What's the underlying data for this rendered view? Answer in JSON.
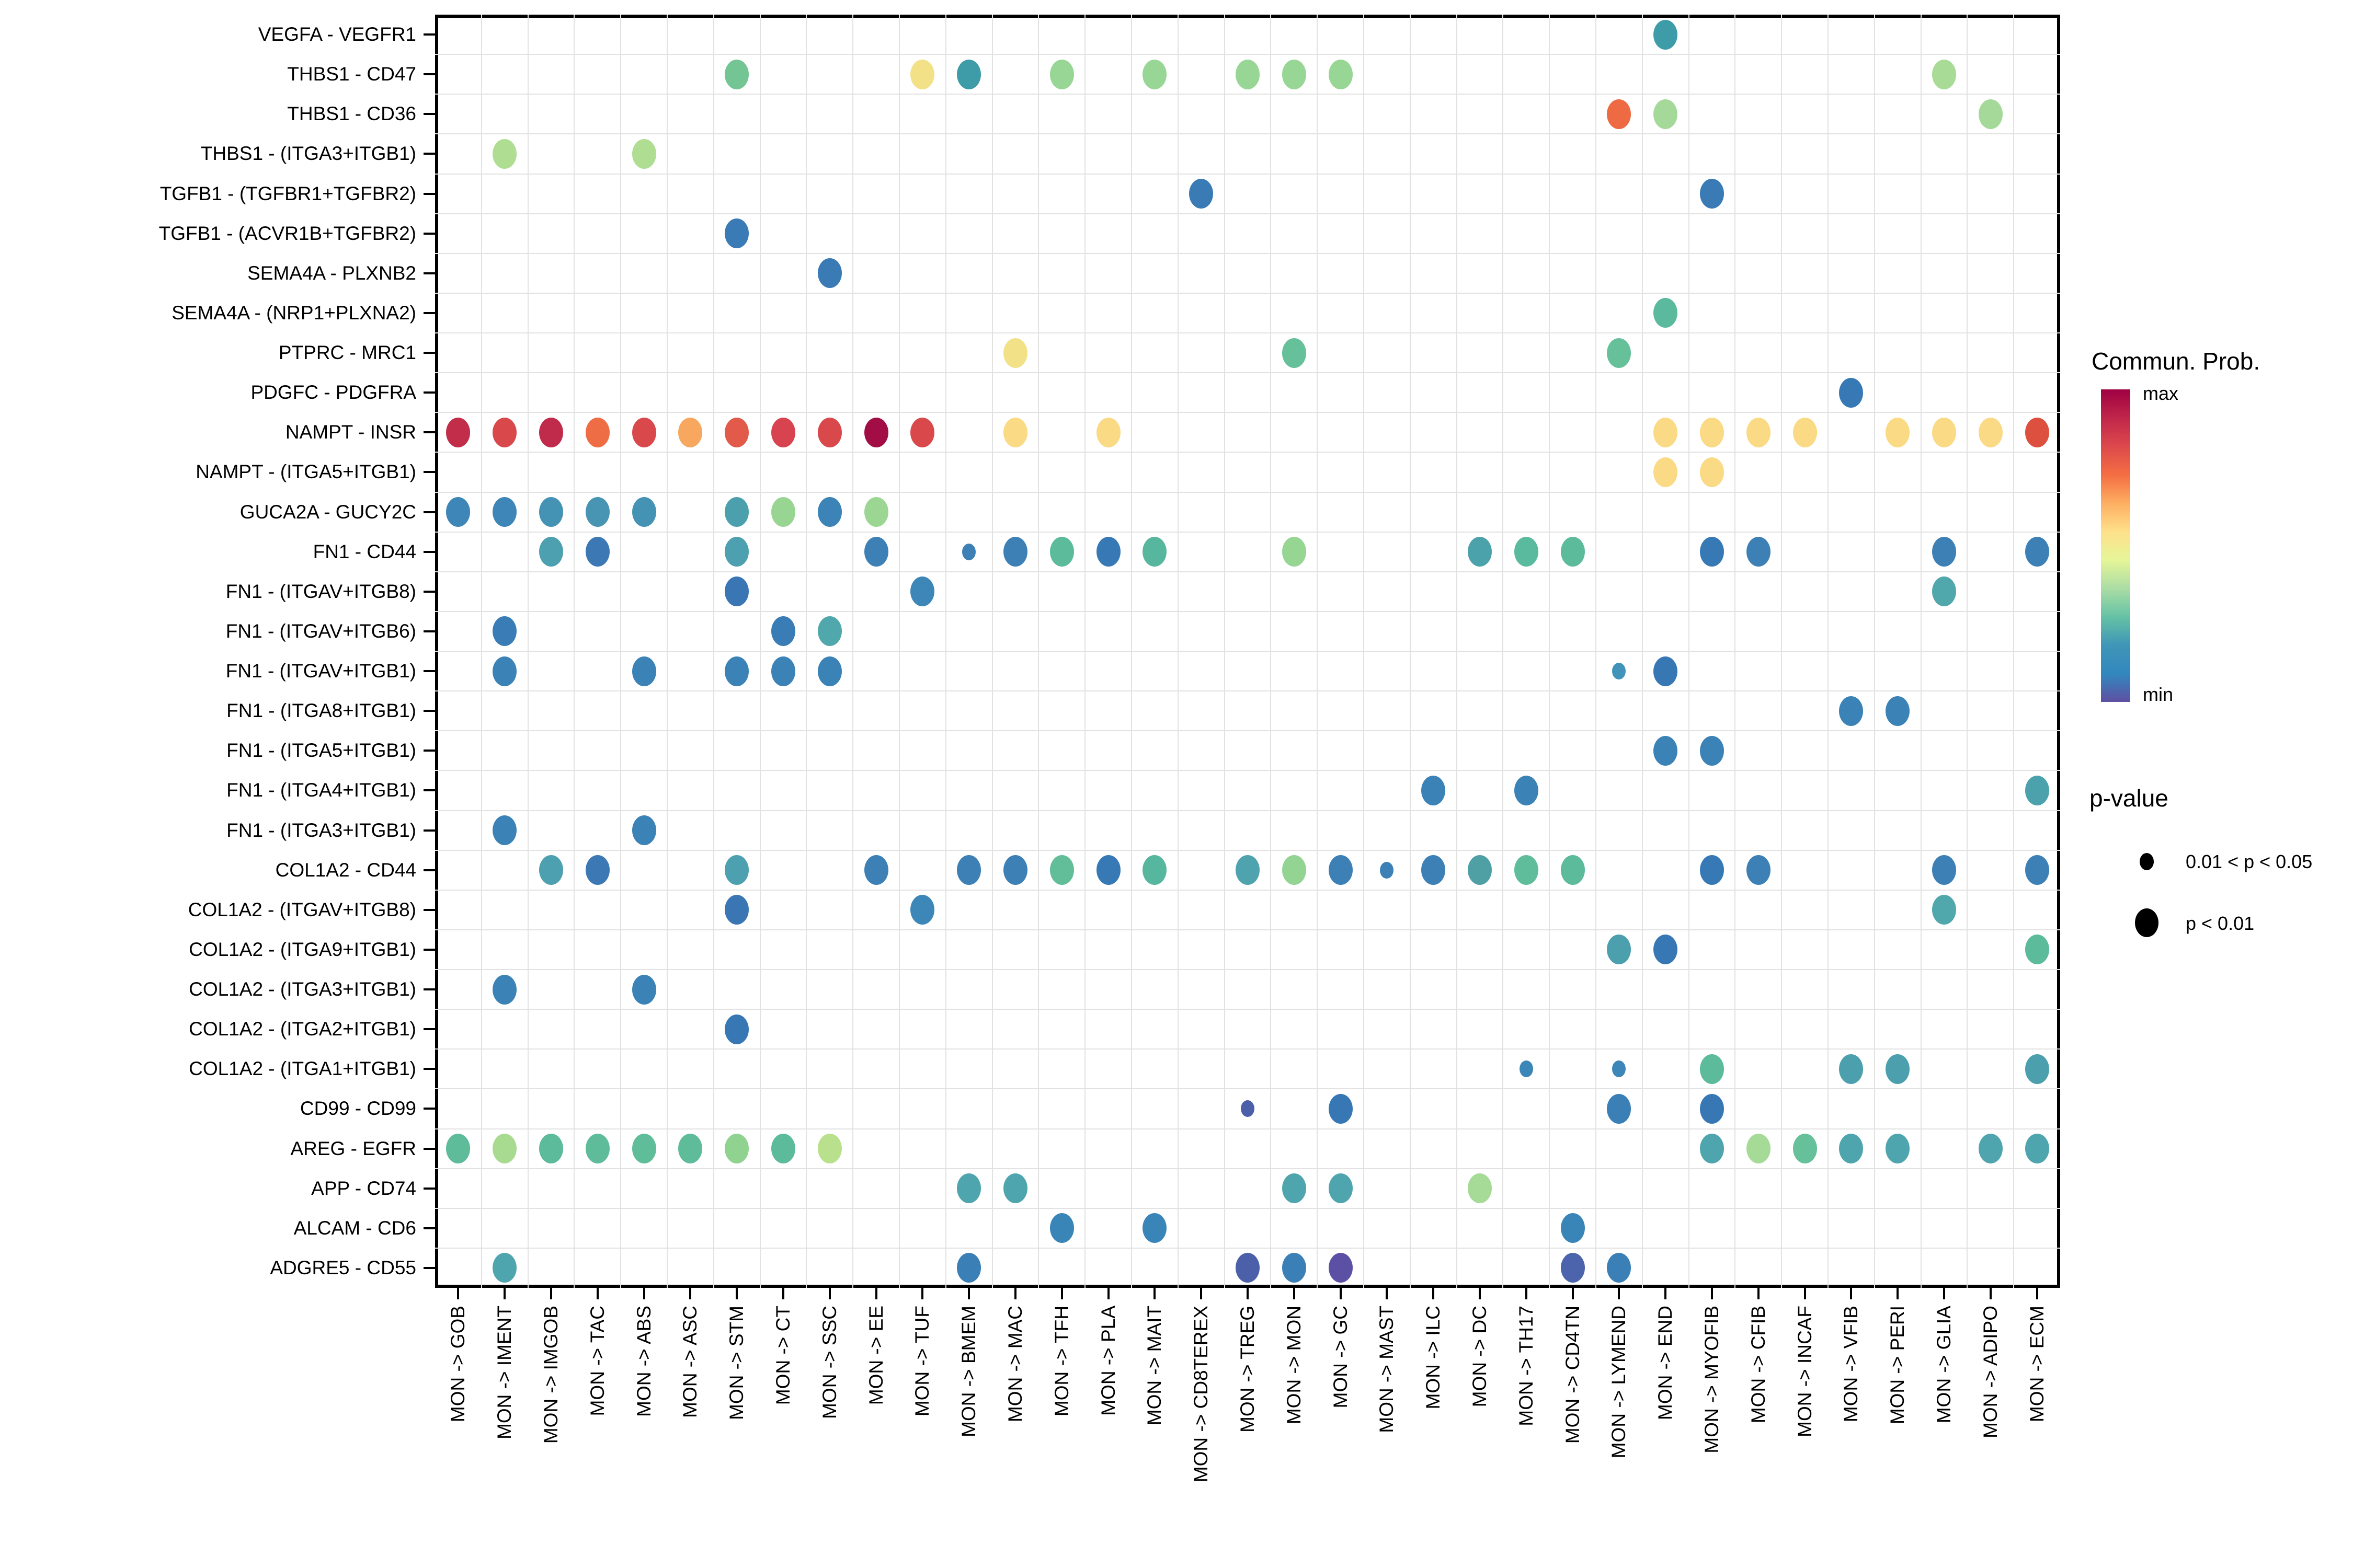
{
  "chart_data": {
    "type": "scatter",
    "subtype": "bubble-matrix-cellchat",
    "title": "",
    "xlabel": "",
    "ylabel": "",
    "grid": true,
    "x_categories": [
      "MON -> GOB",
      "MON -> IMENT",
      "MON -> IMGOB",
      "MON -> TAC",
      "MON -> ABS",
      "MON -> ASC",
      "MON -> STM",
      "MON -> CT",
      "MON -> SSC",
      "MON -> EE",
      "MON -> TUF",
      "MON -> BMEM",
      "MON -> MAC",
      "MON -> TFH",
      "MON -> PLA",
      "MON -> MAIT",
      "MON -> CD8TEREX",
      "MON -> TREG",
      "MON -> MON",
      "MON -> GC",
      "MON -> MAST",
      "MON -> ILC",
      "MON -> DC",
      "MON -> TH17",
      "MON -> CD4TN",
      "MON -> LYMEND",
      "MON -> END",
      "MON -> MYOFIB",
      "MON -> CFIB",
      "MON -> INCAF",
      "MON -> VFIB",
      "MON -> PERI",
      "MON -> GLIA",
      "MON -> ADIPO",
      "MON -> ECM"
    ],
    "y_categories": [
      "VEGFA - VEGFR1",
      "THBS1 - CD47",
      "THBS1 - CD36",
      "THBS1 - (ITGA3+ITGB1)",
      "TGFB1 - (TGFBR1+TGFBR2)",
      "TGFB1 - (ACVR1B+TGFBR2)",
      "SEMA4A - PLXNB2",
      "SEMA4A - (NRP1+PLXNA2)",
      "PTPRC - MRC1",
      "PDGFC - PDGFRA",
      "NAMPT - INSR",
      "NAMPT - (ITGA5+ITGB1)",
      "GUCA2A - GUCY2C",
      "FN1 - CD44",
      "FN1 - (ITGAV+ITGB8)",
      "FN1 - (ITGAV+ITGB6)",
      "FN1 - (ITGAV+ITGB1)",
      "FN1 - (ITGA8+ITGB1)",
      "FN1 - (ITGA5+ITGB1)",
      "FN1 - (ITGA4+ITGB1)",
      "FN1 - (ITGA3+ITGB1)",
      "COL1A2 - CD44",
      "COL1A2 - (ITGAV+ITGB8)",
      "COL1A2 - (ITGA9+ITGB1)",
      "COL1A2 - (ITGA3+ITGB1)",
      "COL1A2 - (ITGA2+ITGB1)",
      "COL1A2 - (ITGA1+ITGB1)",
      "CD99 - CD99",
      "AREG - EGFR",
      "APP - CD74",
      "ALCAM - CD6",
      "ADGRE5 - CD55"
    ],
    "legend": {
      "color_title": "Commun. Prob.",
      "color_max_label": "max",
      "color_min_label": "min",
      "gradient_top_to_bottom": [
        "#9E0142",
        "#C0264A",
        "#DC494C",
        "#F46D43",
        "#FDAE61",
        "#FEE08B",
        "#E6F598",
        "#ABDDA4",
        "#66C2A5",
        "#3F96B7",
        "#3288BD",
        "#5E4FA2"
      ],
      "size_title": "p-value",
      "size_items": [
        {
          "label": "0.01 < p < 0.05",
          "size": "small"
        },
        {
          "label": "p < 0.01",
          "size": "large"
        }
      ]
    },
    "points": [
      {
        "r": 0,
        "c": 26,
        "color": "#3D9CA8",
        "s": "L"
      },
      {
        "r": 1,
        "c": 6,
        "color": "#74C594",
        "s": "L"
      },
      {
        "r": 1,
        "c": 10,
        "color": "#F2E187",
        "s": "L"
      },
      {
        "r": 1,
        "c": 11,
        "color": "#3D9CA8",
        "s": "L"
      },
      {
        "r": 1,
        "c": 13,
        "color": "#97D694",
        "s": "L"
      },
      {
        "r": 1,
        "c": 15,
        "color": "#97D694",
        "s": "L"
      },
      {
        "r": 1,
        "c": 17,
        "color": "#97D694",
        "s": "L"
      },
      {
        "r": 1,
        "c": 18,
        "color": "#97D694",
        "s": "L"
      },
      {
        "r": 1,
        "c": 19,
        "color": "#97D694",
        "s": "L"
      },
      {
        "r": 1,
        "c": 32,
        "color": "#A8DB96",
        "s": "L"
      },
      {
        "r": 2,
        "c": 25,
        "color": "#ED6A42",
        "s": "L"
      },
      {
        "r": 2,
        "c": 26,
        "color": "#A5D99A",
        "s": "L"
      },
      {
        "r": 2,
        "c": 33,
        "color": "#A5D99A",
        "s": "L"
      },
      {
        "r": 3,
        "c": 1,
        "color": "#AFDD92",
        "s": "L"
      },
      {
        "r": 3,
        "c": 4,
        "color": "#AFDD92",
        "s": "L"
      },
      {
        "r": 4,
        "c": 16,
        "color": "#3A7AB5",
        "s": "L"
      },
      {
        "r": 4,
        "c": 27,
        "color": "#3A7AB5",
        "s": "L"
      },
      {
        "r": 5,
        "c": 6,
        "color": "#3A7AB5",
        "s": "L"
      },
      {
        "r": 6,
        "c": 8,
        "color": "#3A7AB5",
        "s": "L"
      },
      {
        "r": 7,
        "c": 26,
        "color": "#5BBA9D",
        "s": "L"
      },
      {
        "r": 8,
        "c": 12,
        "color": "#F2E187",
        "s": "L"
      },
      {
        "r": 8,
        "c": 18,
        "color": "#66C09A",
        "s": "L"
      },
      {
        "r": 8,
        "c": 25,
        "color": "#66C09A",
        "s": "L"
      },
      {
        "r": 9,
        "c": 30,
        "color": "#3779B5",
        "s": "L"
      },
      {
        "r": 10,
        "c": 0,
        "color": "#C22E49",
        "s": "L"
      },
      {
        "r": 10,
        "c": 1,
        "color": "#D9494B",
        "s": "L"
      },
      {
        "r": 10,
        "c": 2,
        "color": "#C02A4B",
        "s": "L"
      },
      {
        "r": 10,
        "c": 3,
        "color": "#EE6D45",
        "s": "L"
      },
      {
        "r": 10,
        "c": 4,
        "color": "#D9494B",
        "s": "L"
      },
      {
        "r": 10,
        "c": 5,
        "color": "#F7A85E",
        "s": "L"
      },
      {
        "r": 10,
        "c": 6,
        "color": "#E25A4A",
        "s": "L"
      },
      {
        "r": 10,
        "c": 7,
        "color": "#D7434E",
        "s": "L"
      },
      {
        "r": 10,
        "c": 8,
        "color": "#D9494B",
        "s": "L"
      },
      {
        "r": 10,
        "c": 9,
        "color": "#A30D45",
        "s": "L"
      },
      {
        "r": 10,
        "c": 10,
        "color": "#D9494B",
        "s": "L"
      },
      {
        "r": 10,
        "c": 12,
        "color": "#FBDA85",
        "s": "L"
      },
      {
        "r": 10,
        "c": 14,
        "color": "#FBDA85",
        "s": "L"
      },
      {
        "r": 10,
        "c": 26,
        "color": "#FBDA85",
        "s": "L"
      },
      {
        "r": 10,
        "c": 27,
        "color": "#FBDA85",
        "s": "L"
      },
      {
        "r": 10,
        "c": 28,
        "color": "#FBDA85",
        "s": "L"
      },
      {
        "r": 10,
        "c": 29,
        "color": "#FBDA85",
        "s": "L"
      },
      {
        "r": 10,
        "c": 31,
        "color": "#FBDA85",
        "s": "L"
      },
      {
        "r": 10,
        "c": 32,
        "color": "#FBDA85",
        "s": "L"
      },
      {
        "r": 10,
        "c": 33,
        "color": "#FBDA85",
        "s": "L"
      },
      {
        "r": 10,
        "c": 34,
        "color": "#DD4F3E",
        "s": "L"
      },
      {
        "r": 11,
        "c": 26,
        "color": "#FBDA85",
        "s": "L"
      },
      {
        "r": 11,
        "c": 27,
        "color": "#FBDA85",
        "s": "L"
      },
      {
        "r": 12,
        "c": 0,
        "color": "#3E86B8",
        "s": "L"
      },
      {
        "r": 12,
        "c": 1,
        "color": "#3E86B8",
        "s": "L"
      },
      {
        "r": 12,
        "c": 2,
        "color": "#4493B4",
        "s": "L"
      },
      {
        "r": 12,
        "c": 3,
        "color": "#4795B3",
        "s": "L"
      },
      {
        "r": 12,
        "c": 4,
        "color": "#4493B4",
        "s": "L"
      },
      {
        "r": 12,
        "c": 6,
        "color": "#4CA0AE",
        "s": "L"
      },
      {
        "r": 12,
        "c": 7,
        "color": "#98D593",
        "s": "L"
      },
      {
        "r": 12,
        "c": 8,
        "color": "#3C83B7",
        "s": "L"
      },
      {
        "r": 12,
        "c": 9,
        "color": "#9BD793",
        "s": "L"
      },
      {
        "r": 13,
        "c": 2,
        "color": "#4DA0AF",
        "s": "L"
      },
      {
        "r": 13,
        "c": 3,
        "color": "#3C78B4",
        "s": "L"
      },
      {
        "r": 13,
        "c": 6,
        "color": "#4DA0AF",
        "s": "L"
      },
      {
        "r": 13,
        "c": 9,
        "color": "#3C80B6",
        "s": "L"
      },
      {
        "r": 13,
        "c": 11,
        "color": "#3C80B6",
        "s": "S"
      },
      {
        "r": 13,
        "c": 12,
        "color": "#3C80B6",
        "s": "L"
      },
      {
        "r": 13,
        "c": 13,
        "color": "#5CBB9B",
        "s": "L"
      },
      {
        "r": 13,
        "c": 14,
        "color": "#3779B5",
        "s": "L"
      },
      {
        "r": 13,
        "c": 15,
        "color": "#56B69E",
        "s": "L"
      },
      {
        "r": 13,
        "c": 18,
        "color": "#96D592",
        "s": "L"
      },
      {
        "r": 13,
        "c": 22,
        "color": "#4CA2AB",
        "s": "L"
      },
      {
        "r": 13,
        "c": 23,
        "color": "#5ABA9D",
        "s": "L"
      },
      {
        "r": 13,
        "c": 24,
        "color": "#5CBB9B",
        "s": "L"
      },
      {
        "r": 13,
        "c": 27,
        "color": "#3779B5",
        "s": "L"
      },
      {
        "r": 13,
        "c": 28,
        "color": "#3C80B6",
        "s": "L"
      },
      {
        "r": 13,
        "c": 32,
        "color": "#3C80B6",
        "s": "L"
      },
      {
        "r": 13,
        "c": 34,
        "color": "#3C80B6",
        "s": "L"
      },
      {
        "r": 14,
        "c": 6,
        "color": "#3B76B4",
        "s": "L"
      },
      {
        "r": 14,
        "c": 10,
        "color": "#3C87B8",
        "s": "L"
      },
      {
        "r": 14,
        "c": 32,
        "color": "#51A8AC",
        "s": "L"
      },
      {
        "r": 15,
        "c": 1,
        "color": "#3A7CB5",
        "s": "L"
      },
      {
        "r": 15,
        "c": 7,
        "color": "#3A7CB5",
        "s": "L"
      },
      {
        "r": 15,
        "c": 8,
        "color": "#50A8AC",
        "s": "L"
      },
      {
        "r": 16,
        "c": 1,
        "color": "#3B82B6",
        "s": "L"
      },
      {
        "r": 16,
        "c": 4,
        "color": "#3B82B6",
        "s": "L"
      },
      {
        "r": 16,
        "c": 6,
        "color": "#3B82B6",
        "s": "L"
      },
      {
        "r": 16,
        "c": 7,
        "color": "#3B82B6",
        "s": "L"
      },
      {
        "r": 16,
        "c": 8,
        "color": "#3B82B6",
        "s": "L"
      },
      {
        "r": 16,
        "c": 25,
        "color": "#4193B9",
        "s": "S"
      },
      {
        "r": 16,
        "c": 26,
        "color": "#3778B4",
        "s": "L"
      },
      {
        "r": 17,
        "c": 30,
        "color": "#3B82B6",
        "s": "L"
      },
      {
        "r": 17,
        "c": 31,
        "color": "#3B82B6",
        "s": "L"
      },
      {
        "r": 18,
        "c": 26,
        "color": "#3B82B6",
        "s": "L"
      },
      {
        "r": 18,
        "c": 27,
        "color": "#3B82B6",
        "s": "L"
      },
      {
        "r": 19,
        "c": 21,
        "color": "#3B82B6",
        "s": "L"
      },
      {
        "r": 19,
        "c": 23,
        "color": "#3B82B6",
        "s": "L"
      },
      {
        "r": 19,
        "c": 34,
        "color": "#4BA2AD",
        "s": "L"
      },
      {
        "r": 20,
        "c": 1,
        "color": "#3B82B6",
        "s": "L"
      },
      {
        "r": 20,
        "c": 4,
        "color": "#3B82B6",
        "s": "L"
      },
      {
        "r": 21,
        "c": 2,
        "color": "#4DA0AF",
        "s": "L"
      },
      {
        "r": 21,
        "c": 3,
        "color": "#3C78B4",
        "s": "L"
      },
      {
        "r": 21,
        "c": 6,
        "color": "#4DA0AF",
        "s": "L"
      },
      {
        "r": 21,
        "c": 9,
        "color": "#3C80B6",
        "s": "L"
      },
      {
        "r": 21,
        "c": 11,
        "color": "#3C80B6",
        "s": "L"
      },
      {
        "r": 21,
        "c": 12,
        "color": "#3C80B6",
        "s": "L"
      },
      {
        "r": 21,
        "c": 13,
        "color": "#62BD99",
        "s": "L"
      },
      {
        "r": 21,
        "c": 14,
        "color": "#3779B5",
        "s": "L"
      },
      {
        "r": 21,
        "c": 15,
        "color": "#56B69E",
        "s": "L"
      },
      {
        "r": 21,
        "c": 17,
        "color": "#4FA3AE",
        "s": "L"
      },
      {
        "r": 21,
        "c": 18,
        "color": "#93D492",
        "s": "L"
      },
      {
        "r": 21,
        "c": 19,
        "color": "#3C80B6",
        "s": "L"
      },
      {
        "r": 21,
        "c": 20,
        "color": "#3C80B6",
        "s": "S"
      },
      {
        "r": 21,
        "c": 21,
        "color": "#3C80B6",
        "s": "L"
      },
      {
        "r": 21,
        "c": 22,
        "color": "#4FA0A5",
        "s": "L"
      },
      {
        "r": 21,
        "c": 23,
        "color": "#5FBD9B",
        "s": "L"
      },
      {
        "r": 21,
        "c": 24,
        "color": "#5CBB9B",
        "s": "L"
      },
      {
        "r": 21,
        "c": 27,
        "color": "#3779B5",
        "s": "L"
      },
      {
        "r": 21,
        "c": 28,
        "color": "#3C80B6",
        "s": "L"
      },
      {
        "r": 21,
        "c": 32,
        "color": "#3C80B6",
        "s": "L"
      },
      {
        "r": 21,
        "c": 34,
        "color": "#3C80B6",
        "s": "L"
      },
      {
        "r": 22,
        "c": 6,
        "color": "#3B76B4",
        "s": "L"
      },
      {
        "r": 22,
        "c": 10,
        "color": "#3C87B8",
        "s": "L"
      },
      {
        "r": 22,
        "c": 32,
        "color": "#51A8AC",
        "s": "L"
      },
      {
        "r": 23,
        "c": 25,
        "color": "#4CA0AE",
        "s": "L"
      },
      {
        "r": 23,
        "c": 26,
        "color": "#3778B4",
        "s": "L"
      },
      {
        "r": 23,
        "c": 34,
        "color": "#5CBB9B",
        "s": "L"
      },
      {
        "r": 24,
        "c": 1,
        "color": "#3B82B6",
        "s": "L"
      },
      {
        "r": 24,
        "c": 4,
        "color": "#3B82B6",
        "s": "L"
      },
      {
        "r": 25,
        "c": 6,
        "color": "#3778B4",
        "s": "L"
      },
      {
        "r": 26,
        "c": 23,
        "color": "#3C87B8",
        "s": "S"
      },
      {
        "r": 26,
        "c": 25,
        "color": "#3C87B8",
        "s": "S"
      },
      {
        "r": 26,
        "c": 27,
        "color": "#5CBB9B",
        "s": "L"
      },
      {
        "r": 26,
        "c": 30,
        "color": "#4CA0AE",
        "s": "L"
      },
      {
        "r": 26,
        "c": 31,
        "color": "#4CA0AE",
        "s": "L"
      },
      {
        "r": 26,
        "c": 34,
        "color": "#4CA0AE",
        "s": "L"
      },
      {
        "r": 27,
        "c": 17,
        "color": "#4C5FA9",
        "s": "S"
      },
      {
        "r": 27,
        "c": 19,
        "color": "#3778B4",
        "s": "L"
      },
      {
        "r": 27,
        "c": 25,
        "color": "#3A7FB6",
        "s": "L"
      },
      {
        "r": 27,
        "c": 27,
        "color": "#3778B4",
        "s": "L"
      },
      {
        "r": 28,
        "c": 0,
        "color": "#5FBC9A",
        "s": "L"
      },
      {
        "r": 28,
        "c": 1,
        "color": "#A8DB90",
        "s": "L"
      },
      {
        "r": 28,
        "c": 2,
        "color": "#5CBB9B",
        "s": "L"
      },
      {
        "r": 28,
        "c": 3,
        "color": "#5EBC9A",
        "s": "L"
      },
      {
        "r": 28,
        "c": 4,
        "color": "#60BD99",
        "s": "L"
      },
      {
        "r": 28,
        "c": 5,
        "color": "#5FBC9A",
        "s": "L"
      },
      {
        "r": 28,
        "c": 6,
        "color": "#90D290",
        "s": "L"
      },
      {
        "r": 28,
        "c": 7,
        "color": "#5CBB9B",
        "s": "L"
      },
      {
        "r": 28,
        "c": 8,
        "color": "#B9E08D",
        "s": "L"
      },
      {
        "r": 28,
        "c": 27,
        "color": "#4FA5AD",
        "s": "L"
      },
      {
        "r": 28,
        "c": 28,
        "color": "#A5DB96",
        "s": "L"
      },
      {
        "r": 28,
        "c": 29,
        "color": "#66C09A",
        "s": "L"
      },
      {
        "r": 28,
        "c": 30,
        "color": "#4FA5AD",
        "s": "L"
      },
      {
        "r": 28,
        "c": 31,
        "color": "#4FA5AD",
        "s": "L"
      },
      {
        "r": 28,
        "c": 33,
        "color": "#4FA5AD",
        "s": "L"
      },
      {
        "r": 28,
        "c": 34,
        "color": "#4FA5AD",
        "s": "L"
      },
      {
        "r": 29,
        "c": 11,
        "color": "#4FA5AD",
        "s": "L"
      },
      {
        "r": 29,
        "c": 12,
        "color": "#4FA5AD",
        "s": "L"
      },
      {
        "r": 29,
        "c": 18,
        "color": "#4FA5AD",
        "s": "L"
      },
      {
        "r": 29,
        "c": 19,
        "color": "#4FA5AD",
        "s": "L"
      },
      {
        "r": 29,
        "c": 22,
        "color": "#A5DB96",
        "s": "L"
      },
      {
        "r": 30,
        "c": 13,
        "color": "#3A85B8",
        "s": "L"
      },
      {
        "r": 30,
        "c": 15,
        "color": "#3A85B8",
        "s": "L"
      },
      {
        "r": 30,
        "c": 24,
        "color": "#3A85B8",
        "s": "L"
      },
      {
        "r": 31,
        "c": 1,
        "color": "#4FA5AD",
        "s": "L"
      },
      {
        "r": 31,
        "c": 11,
        "color": "#3A7FB6",
        "s": "L"
      },
      {
        "r": 31,
        "c": 17,
        "color": "#4C5FA9",
        "s": "L"
      },
      {
        "r": 31,
        "c": 18,
        "color": "#3A7FB6",
        "s": "L"
      },
      {
        "r": 31,
        "c": 19,
        "color": "#5C50A5",
        "s": "L"
      },
      {
        "r": 31,
        "c": 24,
        "color": "#4B64AB",
        "s": "L"
      },
      {
        "r": 31,
        "c": 25,
        "color": "#3A7FB6",
        "s": "L"
      }
    ]
  }
}
